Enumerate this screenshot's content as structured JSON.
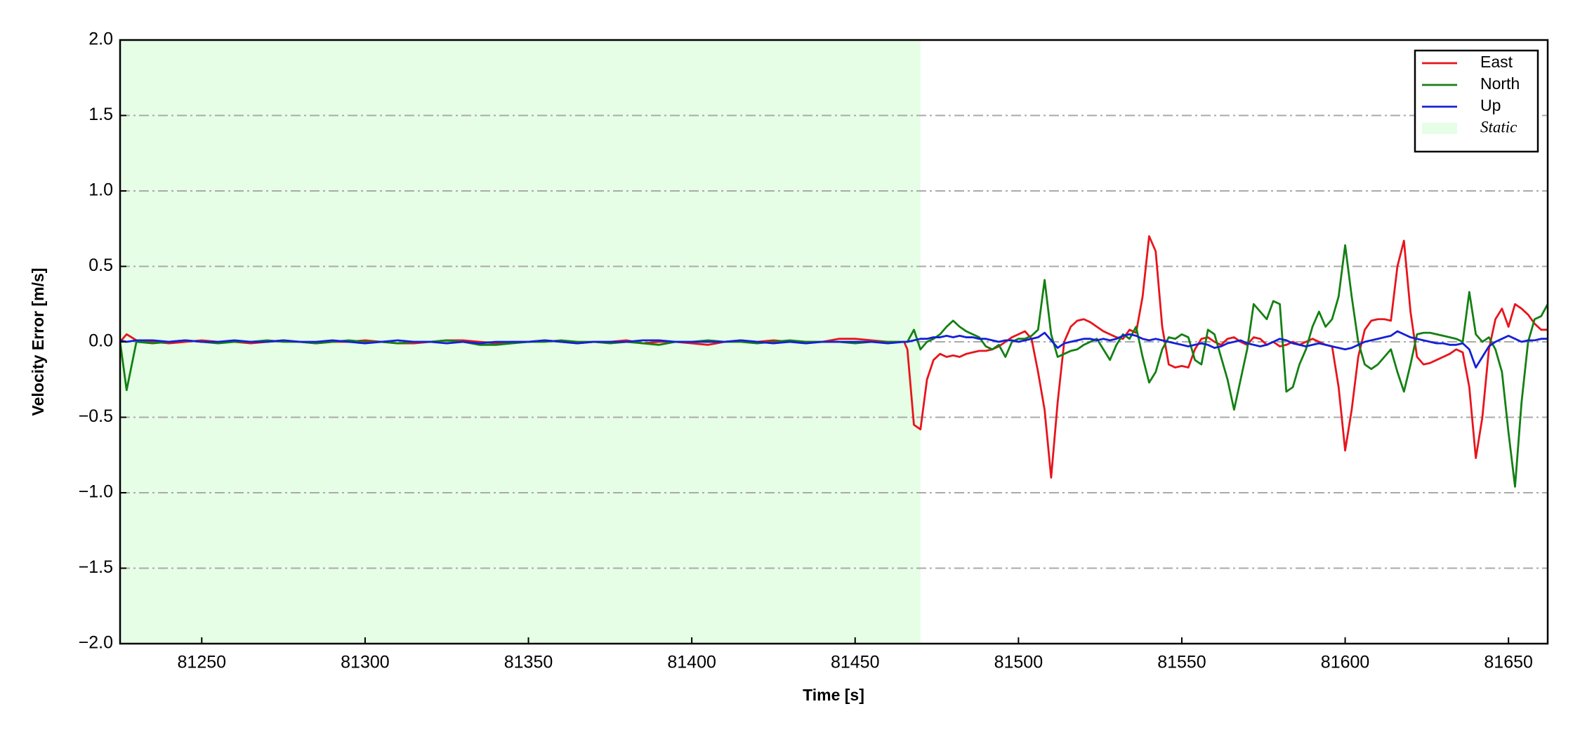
{
  "chart_data": {
    "type": "line",
    "xlabel": "Time [s]",
    "ylabel": "Velocity Error [m/s]",
    "xlim": [
      81225,
      81662
    ],
    "ylim": [
      -2.0,
      2.0
    ],
    "xticks": [
      81250,
      81300,
      81350,
      81400,
      81450,
      81500,
      81550,
      81600,
      81650
    ],
    "yticks": [
      {
        "value": -2.0,
        "label": "−2.0"
      },
      {
        "value": -1.5,
        "label": "−1.5"
      },
      {
        "value": -1.0,
        "label": "−1.0"
      },
      {
        "value": -0.5,
        "label": "−0.5"
      },
      {
        "value": 0.0,
        "label": "0.0"
      },
      {
        "value": 0.5,
        "label": "0.5"
      },
      {
        "value": 1.0,
        "label": "1.0"
      },
      {
        "value": 1.5,
        "label": "1.5"
      },
      {
        "value": 2.0,
        "label": "2.0"
      }
    ],
    "grid": true,
    "legend": "upper right",
    "shaded": {
      "label": "Static",
      "range": [
        81225,
        81470
      ],
      "color": "#e6fde6"
    },
    "x": [
      81225,
      81227,
      81230,
      81235,
      81240,
      81245,
      81250,
      81255,
      81260,
      81265,
      81270,
      81275,
      81280,
      81285,
      81290,
      81295,
      81300,
      81305,
      81310,
      81315,
      81320,
      81325,
      81330,
      81335,
      81340,
      81345,
      81350,
      81355,
      81360,
      81365,
      81370,
      81375,
      81380,
      81385,
      81390,
      81395,
      81400,
      81405,
      81410,
      81415,
      81420,
      81425,
      81430,
      81435,
      81440,
      81445,
      81450,
      81455,
      81460,
      81465,
      81466,
      81468,
      81470,
      81472,
      81474,
      81476,
      81478,
      81480,
      81482,
      81484,
      81486,
      81488,
      81490,
      81492,
      81494,
      81496,
      81498,
      81500,
      81502,
      81504,
      81506,
      81508,
      81510,
      81512,
      81514,
      81516,
      81518,
      81520,
      81522,
      81524,
      81526,
      81528,
      81530,
      81532,
      81534,
      81536,
      81538,
      81540,
      81542,
      81544,
      81546,
      81548,
      81550,
      81552,
      81554,
      81556,
      81558,
      81560,
      81562,
      81564,
      81566,
      81568,
      81570,
      81572,
      81574,
      81576,
      81578,
      81580,
      81582,
      81584,
      81586,
      81588,
      81590,
      81592,
      81594,
      81596,
      81598,
      81600,
      81602,
      81604,
      81606,
      81608,
      81610,
      81612,
      81614,
      81616,
      81618,
      81620,
      81622,
      81624,
      81626,
      81628,
      81630,
      81632,
      81634,
      81636,
      81638,
      81640,
      81642,
      81644,
      81646,
      81648,
      81650,
      81652,
      81654,
      81656,
      81658,
      81660,
      81662
    ],
    "series": [
      {
        "name": "East",
        "color": "#e8141c",
        "values": [
          0.0,
          0.05,
          0.01,
          0.0,
          -0.01,
          0.0,
          0.01,
          0.0,
          0.0,
          -0.01,
          0.0,
          0.01,
          0.0,
          -0.01,
          0.0,
          0.0,
          0.01,
          0.0,
          -0.01,
          -0.01,
          0.0,
          0.01,
          0.01,
          0.0,
          -0.01,
          0.0,
          0.0,
          0.01,
          0.0,
          -0.01,
          0.0,
          0.0,
          0.01,
          -0.01,
          0.0,
          0.0,
          -0.01,
          -0.02,
          0.0,
          0.01,
          0.0,
          0.01,
          0.0,
          0.0,
          0.0,
          0.02,
          0.02,
          0.01,
          0.0,
          0.0,
          -0.05,
          -0.55,
          -0.58,
          -0.25,
          -0.12,
          -0.08,
          -0.1,
          -0.09,
          -0.1,
          -0.08,
          -0.07,
          -0.06,
          -0.06,
          -0.05,
          -0.03,
          0.0,
          0.03,
          0.05,
          0.07,
          0.02,
          -0.2,
          -0.45,
          -0.9,
          -0.4,
          0.0,
          0.1,
          0.14,
          0.15,
          0.13,
          0.1,
          0.07,
          0.05,
          0.03,
          0.02,
          0.08,
          0.06,
          0.3,
          0.7,
          0.6,
          0.1,
          -0.15,
          -0.17,
          -0.16,
          -0.17,
          -0.05,
          0.02,
          0.03,
          0.0,
          -0.02,
          0.02,
          0.03,
          0.0,
          -0.02,
          0.03,
          0.02,
          -0.02,
          0.0,
          -0.03,
          -0.02,
          0.0,
          -0.02,
          0.0,
          0.02,
          0.0,
          -0.02,
          -0.03,
          -0.3,
          -0.72,
          -0.45,
          -0.1,
          0.08,
          0.14,
          0.15,
          0.15,
          0.14,
          0.5,
          0.67,
          0.2,
          -0.1,
          -0.15,
          -0.14,
          -0.12,
          -0.1,
          -0.08,
          -0.05,
          -0.07,
          -0.3,
          -0.77,
          -0.5,
          -0.05,
          0.15,
          0.22,
          0.1,
          0.25,
          0.22,
          0.18,
          0.12,
          0.08,
          0.08
        ]
      },
      {
        "name": "North",
        "color": "#138013",
        "values": [
          0.0,
          -0.32,
          0.0,
          -0.01,
          0.0,
          0.01,
          0.0,
          -0.01,
          0.0,
          0.0,
          0.01,
          0.0,
          0.0,
          -0.01,
          0.0,
          0.01,
          0.0,
          0.0,
          -0.01,
          0.0,
          0.0,
          0.01,
          0.0,
          -0.02,
          -0.02,
          -0.01,
          0.0,
          0.0,
          0.01,
          0.0,
          0.0,
          -0.01,
          0.0,
          -0.01,
          -0.02,
          0.0,
          0.0,
          0.01,
          0.0,
          0.0,
          -0.01,
          0.0,
          0.01,
          0.0,
          0.0,
          0.0,
          -0.01,
          0.0,
          0.0,
          0.0,
          0.0,
          0.08,
          -0.05,
          0.0,
          0.02,
          0.05,
          0.1,
          0.14,
          0.1,
          0.07,
          0.05,
          0.03,
          -0.03,
          -0.05,
          -0.02,
          -0.1,
          0.0,
          0.02,
          0.02,
          0.04,
          0.08,
          0.41,
          0.05,
          -0.1,
          -0.08,
          -0.06,
          -0.05,
          -0.02,
          0.0,
          0.02,
          -0.05,
          -0.12,
          -0.02,
          0.05,
          0.02,
          0.1,
          -0.1,
          -0.27,
          -0.2,
          -0.05,
          0.03,
          0.02,
          0.05,
          0.03,
          -0.12,
          -0.15,
          0.08,
          0.05,
          -0.1,
          -0.25,
          -0.45,
          -0.25,
          -0.05,
          0.25,
          0.2,
          0.15,
          0.27,
          0.25,
          -0.33,
          -0.3,
          -0.15,
          -0.05,
          0.1,
          0.2,
          0.1,
          0.15,
          0.3,
          0.64,
          0.3,
          0.0,
          -0.15,
          -0.18,
          -0.15,
          -0.1,
          -0.05,
          -0.2,
          -0.33,
          -0.15,
          0.05,
          0.06,
          0.06,
          0.05,
          0.04,
          0.03,
          0.02,
          0.0,
          0.33,
          0.05,
          0.0,
          0.03,
          -0.05,
          -0.2,
          -0.6,
          -0.96,
          -0.4,
          0.0,
          0.15,
          0.17,
          0.25
        ]
      },
      {
        "name": "Up",
        "color": "#1420d8",
        "values": [
          0.01,
          0.0,
          0.01,
          0.01,
          0.0,
          0.01,
          0.0,
          0.0,
          0.01,
          0.0,
          0.0,
          0.01,
          0.0,
          0.0,
          0.01,
          0.0,
          -0.01,
          0.0,
          0.01,
          0.0,
          0.0,
          -0.01,
          0.0,
          -0.01,
          0.0,
          0.0,
          0.0,
          0.01,
          0.0,
          -0.01,
          0.0,
          0.0,
          0.0,
          0.01,
          0.01,
          0.0,
          0.0,
          0.0,
          0.0,
          0.01,
          0.0,
          -0.01,
          0.0,
          -0.01,
          0.0,
          0.0,
          0.0,
          0.0,
          -0.01,
          0.0,
          0.0,
          0.01,
          0.02,
          0.02,
          0.03,
          0.03,
          0.04,
          0.03,
          0.04,
          0.03,
          0.03,
          0.02,
          0.02,
          0.01,
          0.0,
          0.01,
          0.01,
          0.0,
          0.01,
          0.02,
          0.03,
          0.06,
          0.01,
          -0.04,
          -0.01,
          0.0,
          0.01,
          0.02,
          0.02,
          0.01,
          0.02,
          0.01,
          0.02,
          0.04,
          0.05,
          0.04,
          0.02,
          0.01,
          0.02,
          0.01,
          0.0,
          -0.01,
          -0.02,
          -0.03,
          -0.02,
          -0.01,
          -0.02,
          -0.04,
          -0.03,
          -0.01,
          0.0,
          0.01,
          -0.01,
          -0.02,
          -0.03,
          -0.02,
          0.0,
          0.02,
          0.01,
          -0.01,
          -0.02,
          -0.03,
          -0.02,
          -0.01,
          -0.02,
          -0.03,
          -0.04,
          -0.05,
          -0.04,
          -0.02,
          0.0,
          0.01,
          0.02,
          0.03,
          0.04,
          0.07,
          0.05,
          0.03,
          0.02,
          0.01,
          0.0,
          -0.01,
          -0.01,
          -0.02,
          -0.02,
          -0.01,
          -0.05,
          -0.17,
          -0.1,
          -0.03,
          0.0,
          0.02,
          0.04,
          0.02,
          0.0,
          0.01,
          0.01,
          0.02,
          0.02
        ]
      }
    ]
  }
}
